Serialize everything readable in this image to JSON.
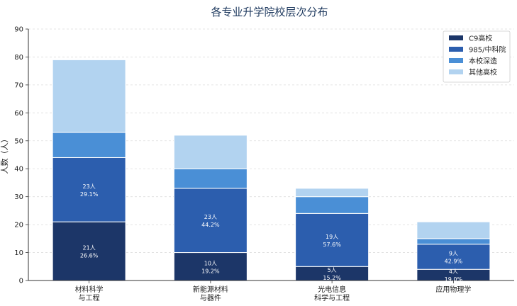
{
  "chart_data": {
    "type": "bar",
    "stacked": true,
    "title": "各专业升学院校层次分布",
    "ylabel": "人数（人）",
    "xlabel": "",
    "ylim": [
      0,
      90
    ],
    "yticks": [
      0,
      10,
      20,
      30,
      40,
      50,
      60,
      70,
      80,
      90
    ],
    "grid": true,
    "legend_position": "top-right",
    "categories": [
      [
        "材料科学",
        "与工程"
      ],
      [
        "新能源材料",
        "与器件"
      ],
      [
        "光电信息",
        "科学与工程"
      ],
      [
        "应用物理学"
      ]
    ],
    "series": [
      {
        "name": "C9高校",
        "color": "#1c3668",
        "values": [
          21,
          10,
          5,
          4
        ]
      },
      {
        "name": "985/中科院",
        "color": "#2c5eae",
        "values": [
          23,
          23,
          19,
          9
        ]
      },
      {
        "name": "本校深造",
        "color": "#4a8fd6",
        "values": [
          9,
          7,
          6,
          2
        ]
      },
      {
        "name": "其他高校",
        "color": "#b2d3f0",
        "values": [
          26,
          12,
          3,
          6
        ]
      }
    ],
    "data_labels": [
      [
        {
          "count": "21人",
          "pct": "26.6%"
        },
        {
          "count": "23人",
          "pct": "29.1%"
        },
        null,
        null
      ],
      [
        {
          "count": "10人",
          "pct": "19.2%"
        },
        {
          "count": "23人",
          "pct": "44.2%"
        },
        null,
        null
      ],
      [
        {
          "count": "5人",
          "pct": "15.2%"
        },
        {
          "count": "19人",
          "pct": "57.6%"
        },
        null,
        null
      ],
      [
        {
          "count": "4人",
          "pct": "19.0%"
        },
        {
          "count": "9人",
          "pct": "42.9%"
        },
        null,
        null
      ]
    ]
  }
}
